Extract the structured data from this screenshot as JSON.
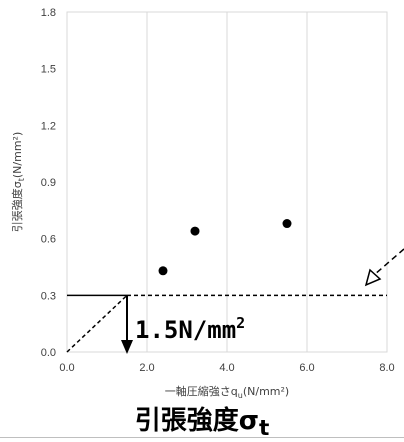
{
  "chart_data": {
    "type": "scatter",
    "xlabel": "一軸圧縮強さq",
    "xlabel_sub": "u",
    "xlabel_unit": "(N/mm²)",
    "ylabel": "引張強度σ",
    "ylabel_sub": "t",
    "ylabel_unit": "(N/mm²)",
    "xlim": [
      0,
      8
    ],
    "ylim": [
      0,
      1.8
    ],
    "xticks": [
      "0.0",
      "2.0",
      "4.0",
      "6.0",
      "8.0"
    ],
    "yticks": [
      "0.0",
      "0.3",
      "0.6",
      "0.9",
      "1.2",
      "1.5",
      "1.8"
    ],
    "xtick_values": [
      0,
      2,
      4,
      6,
      8
    ],
    "ytick_values": [
      0,
      0.3,
      0.6,
      0.9,
      1.2,
      1.5,
      1.8
    ],
    "grid": "vertical",
    "points": [
      {
        "x": 2.4,
        "y": 0.43
      },
      {
        "x": 3.2,
        "y": 0.64
      },
      {
        "x": 5.5,
        "y": 0.68
      }
    ],
    "threshold_line": {
      "y": 0.3,
      "style": "dashed",
      "color": "#000000"
    },
    "reference_segment": {
      "x0": 0,
      "y0": 0,
      "x1": 1.5,
      "y1": 0.3,
      "style": "dashed"
    },
    "annotation_text": "1.5N/mm",
    "annotation_sup": "2",
    "annotation_x": 1.5,
    "annotation_y": 0.3
  },
  "caption": {
    "main": "引張強度σ",
    "sub": "t"
  },
  "colors": {
    "grid": "#d9d9d9",
    "marker": "#000000"
  }
}
